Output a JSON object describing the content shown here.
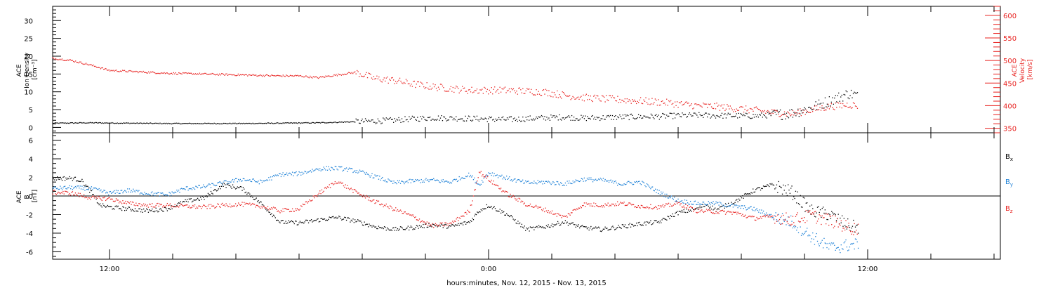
{
  "chart_data": [
    {
      "type": "scatter",
      "panel": "top",
      "ylabel_left": [
        "ACE",
        "Ion Density",
        "[cm⁻³]"
      ],
      "ylabel_right": [
        "ACE",
        "Velocity",
        "[km/s]"
      ],
      "ylim_left": [
        -1.5,
        34
      ],
      "yticks_left": [
        0,
        5,
        10,
        15,
        20,
        25,
        30
      ],
      "ylim_right": [
        340,
        620
      ],
      "yticks_right": [
        350,
        400,
        450,
        500,
        550,
        600
      ],
      "series": [
        {
          "axis": "left",
          "color": "#000000",
          "x": [
            0,
            2,
            4,
            6,
            8,
            10,
            12,
            14,
            16,
            18,
            19,
            20,
            22,
            24,
            26,
            27,
            28,
            30,
            32,
            33,
            34,
            35,
            36,
            37,
            38,
            39,
            40,
            41,
            42,
            42.5
          ],
          "y": [
            1.2,
            1.3,
            1.2,
            1.1,
            1.1,
            1.1,
            1.2,
            1.3,
            1.6,
            2.0,
            2.4,
            2.7,
            2.5,
            2.2,
            2.7,
            2.9,
            2.6,
            2.9,
            3.1,
            3.3,
            3.4,
            3.3,
            3.3,
            3.2,
            3.5,
            4.0,
            5.5,
            7.5,
            9.5,
            9.0
          ]
        },
        {
          "axis": "right",
          "color": "#e8201e",
          "x": [
            0,
            1,
            2,
            3,
            4,
            6,
            8,
            10,
            12,
            13,
            14,
            16,
            17,
            18,
            19,
            20,
            22,
            24,
            25,
            26,
            27,
            28,
            30,
            32,
            34,
            35,
            36,
            37,
            38,
            39,
            40,
            41,
            42,
            42.5
          ],
          "y": [
            505,
            500,
            490,
            478,
            476,
            472,
            470,
            468,
            466,
            466,
            462,
            474,
            460,
            456,
            448,
            442,
            434,
            434,
            432,
            430,
            423,
            418,
            413,
            408,
            400,
            398,
            394,
            390,
            385,
            382,
            390,
            398,
            402,
            400
          ]
        }
      ]
    },
    {
      "type": "scatter",
      "panel": "bottom",
      "ylabel": [
        "ACE",
        "B",
        "[nT]"
      ],
      "ylim": [
        -6.8,
        6.8
      ],
      "yticks": [
        -6,
        -4,
        -2,
        0,
        2,
        4,
        6
      ],
      "xlabel": "hours:minutes, Nov. 12, 2015 - Nov. 13, 2015",
      "xlim": [
        0,
        50
      ],
      "xticks": [
        {
          "pos": 3,
          "label": "12:00"
        },
        {
          "pos": 23,
          "label": "0:00"
        },
        {
          "pos": 43,
          "label": "12:00"
        }
      ],
      "legend_labels": [
        {
          "base": "B",
          "sub": "x",
          "color": "#000000"
        },
        {
          "base": "B",
          "sub": "y",
          "color": "#1a7fd6"
        },
        {
          "base": "B",
          "sub": "z",
          "color": "#e8201e"
        }
      ],
      "series": [
        {
          "name": "Bx",
          "color": "#000000",
          "x": [
            0,
            1,
            1.5,
            2,
            2.5,
            3,
            4,
            5,
            6,
            7,
            8,
            9,
            10,
            11,
            12,
            13,
            14,
            15,
            16,
            17,
            18,
            19,
            20,
            21,
            22,
            22.5,
            23,
            24,
            25,
            26,
            27,
            28,
            29,
            30,
            31,
            32,
            33,
            34,
            34.5,
            35,
            36,
            37,
            38,
            39,
            40,
            41,
            42,
            42.5
          ],
          "y": [
            1.9,
            1.9,
            1.7,
            0.5,
            -1.0,
            -1.2,
            -1.4,
            -1.6,
            -1.4,
            -0.6,
            -0.2,
            1.2,
            0.8,
            -0.8,
            -2.8,
            -2.9,
            -2.6,
            -2.3,
            -2.7,
            -3.3,
            -3.6,
            -3.4,
            -3.1,
            -3.3,
            -2.8,
            -1.6,
            -1.0,
            -2.0,
            -3.6,
            -3.3,
            -2.8,
            -3.4,
            -3.6,
            -3.3,
            -3.0,
            -2.8,
            -1.8,
            -1.4,
            -0.9,
            -1.5,
            -0.6,
            0.6,
            1.2,
            0.4,
            -1.6,
            -2.0,
            -3.2,
            -3.4
          ]
        },
        {
          "name": "By",
          "color": "#1a7fd6",
          "x": [
            0,
            1,
            2,
            3,
            4,
            5,
            6,
            7,
            8,
            9,
            10,
            11,
            12,
            13,
            14,
            15,
            16,
            17,
            18,
            19,
            20,
            21,
            22,
            22.5,
            23,
            24,
            25,
            26,
            27,
            28,
            29,
            30,
            31,
            32,
            33,
            34,
            35,
            36,
            37,
            38,
            39,
            40,
            41,
            42,
            42.5
          ],
          "y": [
            0.8,
            0.9,
            0.8,
            0.3,
            0.6,
            0.3,
            0.1,
            0.8,
            1.0,
            1.4,
            1.8,
            1.5,
            2.3,
            2.4,
            2.9,
            3.0,
            2.7,
            2.1,
            1.4,
            1.6,
            1.7,
            1.5,
            2.3,
            1.2,
            2.5,
            1.9,
            1.4,
            1.5,
            1.3,
            1.8,
            1.7,
            1.3,
            1.5,
            0.4,
            -0.5,
            -0.8,
            -0.8,
            -1.1,
            -1.4,
            -2.2,
            -2.8,
            -4.3,
            -5.6,
            -5.3,
            -5.2
          ]
        },
        {
          "name": "Bz",
          "color": "#e8201e",
          "x": [
            0,
            1,
            2,
            3,
            4,
            5,
            6,
            7,
            8,
            9,
            10,
            11,
            12,
            13,
            14,
            15,
            16,
            17,
            18,
            19,
            20,
            21,
            22,
            22.5,
            23,
            24,
            25,
            26,
            27,
            28,
            29,
            30,
            31,
            32,
            33,
            34,
            35,
            36,
            37,
            38,
            39,
            40,
            41,
            42,
            42.5
          ],
          "y": [
            0.4,
            0.3,
            -0.2,
            -0.3,
            -0.8,
            -1.0,
            -1.0,
            -1.1,
            -1.2,
            -1.0,
            -0.9,
            -1.1,
            -1.6,
            -1.4,
            0.2,
            1.6,
            0.4,
            -0.6,
            -1.4,
            -2.2,
            -3.2,
            -3.0,
            -1.6,
            2.6,
            1.8,
            0.2,
            -0.9,
            -1.5,
            -2.3,
            -0.9,
            -1.0,
            -0.8,
            -1.1,
            -1.2,
            -0.8,
            -1.6,
            -1.7,
            -1.8,
            -2.4,
            -2.2,
            -2.6,
            -2.1,
            -2.6,
            -3.4,
            -3.6
          ]
        }
      ]
    }
  ]
}
